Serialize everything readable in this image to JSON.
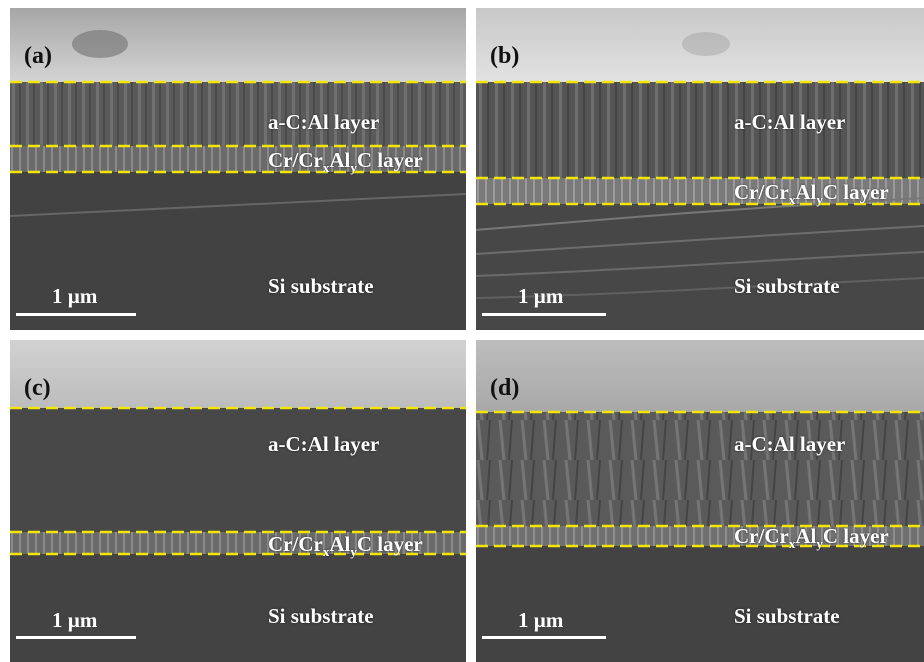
{
  "panels": [
    {
      "label": "(a)",
      "layer_top": "a-C:Al layer",
      "layer_mid": {
        "prefix": "Cr/Cr",
        "x": "x",
        "al": "Al",
        "y": "y",
        "c": "C layer"
      },
      "substrate": "Si substrate",
      "scale": "1 µm"
    },
    {
      "label": "(b)",
      "layer_top": "a-C:Al layer",
      "layer_mid": {
        "prefix": "Cr/Cr",
        "x": "x",
        "al": "Al",
        "y": "y",
        "c": "C layer"
      },
      "substrate": "Si substrate",
      "scale": "1 µm"
    },
    {
      "label": "(c)",
      "layer_top": "a-C:Al layer",
      "layer_mid": {
        "prefix": "Cr/Cr",
        "x": "x",
        "al": "Al",
        "y": "y",
        "c": "C layer"
      },
      "substrate": "Si substrate",
      "scale": "1 µm"
    },
    {
      "label": "(d)",
      "layer_top": "a-C:Al layer",
      "layer_mid": {
        "prefix": "Cr/Cr",
        "x": "x",
        "al": "Al",
        "y": "y",
        "c": "C layer"
      },
      "substrate": "Si substrate",
      "scale": "1 µm"
    }
  ],
  "colors": {
    "dashed_line": "#f2e600",
    "text": "#ffffff",
    "panel_label": "#111111"
  }
}
